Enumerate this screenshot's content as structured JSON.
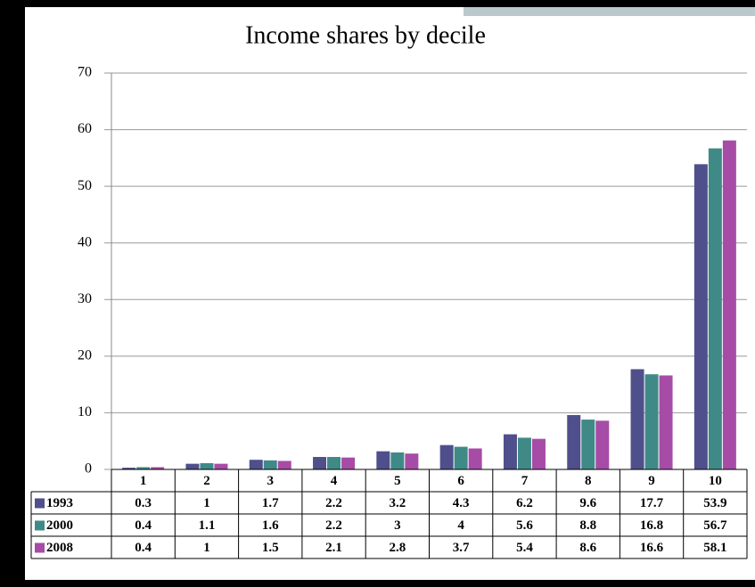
{
  "chart_data": {
    "type": "bar",
    "title": "Income shares by decile",
    "categories": [
      "1",
      "2",
      "3",
      "4",
      "5",
      "6",
      "7",
      "8",
      "9",
      "10"
    ],
    "series": [
      {
        "name": "1993",
        "color": "#4f4f8c",
        "values": [
          0.3,
          1,
          1.7,
          2.2,
          3.2,
          4.3,
          6.2,
          9.6,
          17.7,
          53.9
        ]
      },
      {
        "name": "2000",
        "color": "#3f8a87",
        "values": [
          0.4,
          1.1,
          1.6,
          2.2,
          3,
          4,
          5.6,
          8.8,
          16.8,
          56.7
        ]
      },
      {
        "name": "2008",
        "color": "#a64ca6",
        "values": [
          0.4,
          1,
          1.5,
          2.1,
          2.8,
          3.7,
          5.4,
          8.6,
          16.6,
          58.1
        ]
      }
    ],
    "ylim": [
      0,
      70
    ],
    "yticks": [
      0,
      10,
      20,
      30,
      40,
      50,
      60,
      70
    ],
    "grid": true
  }
}
